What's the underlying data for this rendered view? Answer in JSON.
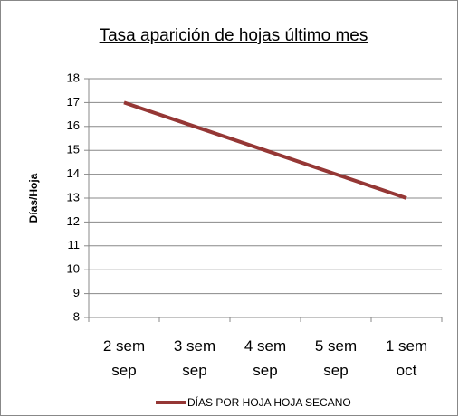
{
  "chart_data": {
    "type": "line",
    "title": "Tasa aparición de hojas último mes",
    "y_label": "Días/Hoja",
    "categories": [
      "2 sem sep",
      "3 sem sep",
      "4 sem sep",
      "5 sem sep",
      "1 sem oct"
    ],
    "series": [
      {
        "name": "DÍAS POR HOJA HOJA SECANO",
        "color": "#953735",
        "values": [
          17,
          16,
          15,
          14,
          13
        ]
      }
    ],
    "ylim": [
      8,
      18
    ],
    "yticks": [
      8,
      9,
      10,
      11,
      12,
      13,
      14,
      15,
      16,
      17,
      18
    ],
    "grid": true,
    "legend": "bottom"
  }
}
